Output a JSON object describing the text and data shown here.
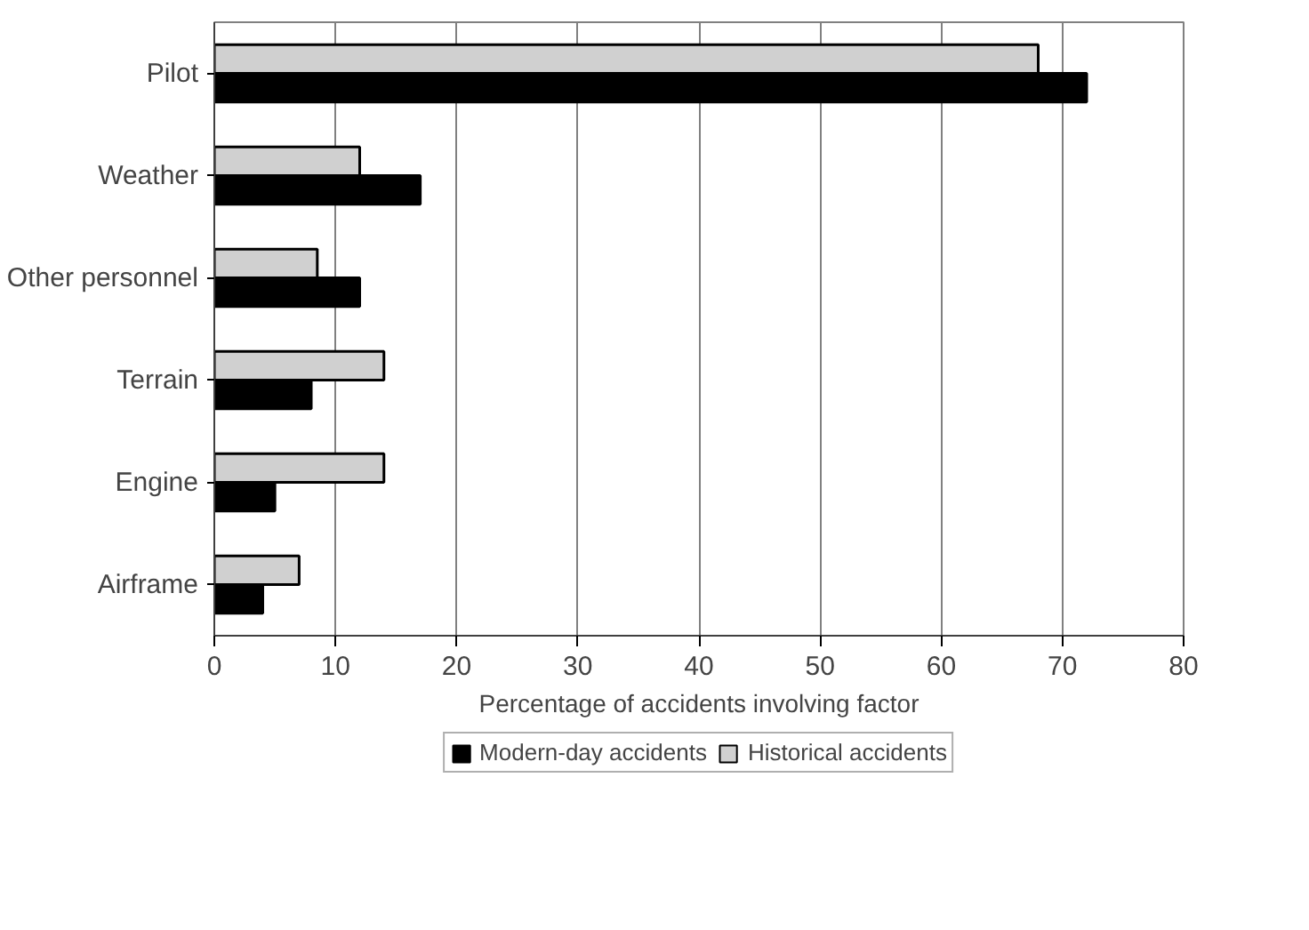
{
  "chart_data": {
    "type": "bar",
    "orientation": "horizontal",
    "xlabel": "Percentage of accidents involving factor",
    "categories": [
      "Pilot",
      "Weather",
      "Other personnel",
      "Terrain",
      "Engine",
      "Airframe"
    ],
    "series": [
      {
        "name": "Modern-day accidents",
        "color": "#000000",
        "values": [
          72,
          17,
          12,
          8,
          5,
          4
        ]
      },
      {
        "name": "Historical accidents",
        "color": "#d0d0d0",
        "values": [
          68,
          12,
          8.5,
          14,
          14,
          7
        ]
      }
    ],
    "xlim": [
      0,
      80
    ],
    "xticks": [
      0,
      10,
      20,
      30,
      40,
      50,
      60,
      70,
      80
    ],
    "grid": "x",
    "legend": "bottom"
  }
}
